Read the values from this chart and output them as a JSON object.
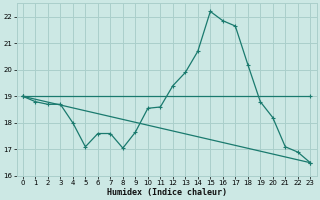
{
  "xlabel": "Humidex (Indice chaleur)",
  "xlim": [
    -0.5,
    23.5
  ],
  "ylim": [
    16,
    22.5
  ],
  "yticks": [
    16,
    17,
    18,
    19,
    20,
    21,
    22
  ],
  "xticks": [
    0,
    1,
    2,
    3,
    4,
    5,
    6,
    7,
    8,
    9,
    10,
    11,
    12,
    13,
    14,
    15,
    16,
    17,
    18,
    19,
    20,
    21,
    22,
    23
  ],
  "background_color": "#cce8e4",
  "grid_color": "#aacfcb",
  "line_color": "#1a7a6e",
  "line1_x": [
    0,
    1,
    2,
    3,
    4,
    5,
    6,
    7,
    8,
    9,
    10,
    11,
    12,
    13,
    14,
    15,
    16,
    17,
    18,
    19,
    20,
    21,
    22,
    23
  ],
  "line1_y": [
    19.0,
    18.8,
    18.7,
    18.7,
    18.0,
    17.1,
    17.6,
    17.6,
    17.05,
    17.65,
    18.55,
    18.6,
    19.4,
    19.9,
    20.7,
    22.2,
    21.85,
    21.65,
    20.2,
    18.8,
    18.2,
    17.1,
    16.9,
    16.5
  ],
  "line2_x": [
    0,
    23
  ],
  "line2_y": [
    19.0,
    19.0
  ],
  "line3_x": [
    0,
    23
  ],
  "line3_y": [
    19.0,
    16.5
  ]
}
